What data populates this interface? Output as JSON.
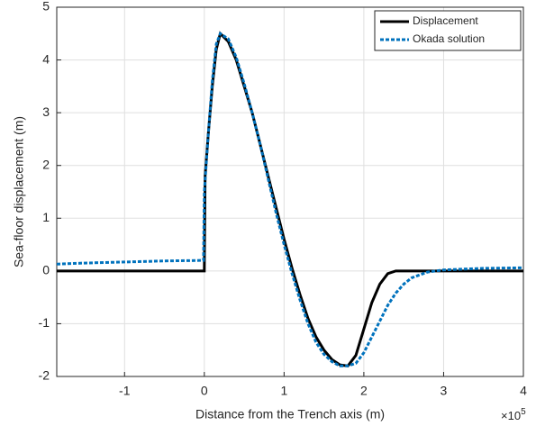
{
  "chart_data": {
    "type": "line",
    "xlabel": "Distance from the Trench axis (m)",
    "ylabel": "Sea-floor displacement (m)",
    "x_exponent_base": "×10",
    "x_exponent": "5",
    "xlim": [
      -1.85,
      4
    ],
    "ylim": [
      -2,
      5
    ],
    "xticks": [
      -1,
      0,
      1,
      2,
      3,
      4
    ],
    "yticks": [
      -2,
      -1,
      0,
      1,
      2,
      3,
      4,
      5
    ],
    "grid": true,
    "legend": "top-right",
    "series": [
      {
        "name": "Displacement",
        "color": "#000000",
        "style": "solid",
        "x": [
          -1.85,
          -0.01,
          0,
          0.01,
          0.05,
          0.1,
          0.15,
          0.2,
          0.3,
          0.4,
          0.5,
          0.6,
          0.7,
          0.8,
          0.9,
          1.0,
          1.1,
          1.2,
          1.3,
          1.4,
          1.5,
          1.6,
          1.7,
          1.8,
          1.9,
          2.0,
          2.1,
          2.2,
          2.3,
          2.4,
          3.0,
          4.0
        ],
        "values": [
          0,
          0,
          0,
          1.8,
          2.6,
          3.5,
          4.2,
          4.5,
          4.35,
          4.0,
          3.5,
          3.0,
          2.4,
          1.8,
          1.2,
          0.6,
          0.05,
          -0.45,
          -0.9,
          -1.25,
          -1.5,
          -1.68,
          -1.78,
          -1.8,
          -1.6,
          -1.1,
          -0.6,
          -0.25,
          -0.05,
          0,
          0,
          0
        ]
      },
      {
        "name": "Okada solution",
        "color": "#0072bd",
        "style": "dashed",
        "x": [
          -1.85,
          -1.5,
          -1,
          -0.5,
          -0.01,
          0,
          0.05,
          0.1,
          0.15,
          0.2,
          0.3,
          0.4,
          0.5,
          0.6,
          0.7,
          0.8,
          0.9,
          1.0,
          1.1,
          1.2,
          1.3,
          1.4,
          1.5,
          1.6,
          1.7,
          1.8,
          1.9,
          2.0,
          2.1,
          2.2,
          2.3,
          2.4,
          2.5,
          2.6,
          2.8,
          3.0,
          3.5,
          4.0
        ],
        "values": [
          0.13,
          0.15,
          0.17,
          0.19,
          0.2,
          1.5,
          2.6,
          3.6,
          4.3,
          4.5,
          4.4,
          4.05,
          3.55,
          3.0,
          2.4,
          1.75,
          1.1,
          0.5,
          -0.05,
          -0.55,
          -1.0,
          -1.35,
          -1.58,
          -1.72,
          -1.8,
          -1.8,
          -1.75,
          -1.55,
          -1.25,
          -0.95,
          -0.65,
          -0.42,
          -0.25,
          -0.13,
          -0.02,
          0.02,
          0.05,
          0.06
        ]
      }
    ]
  }
}
